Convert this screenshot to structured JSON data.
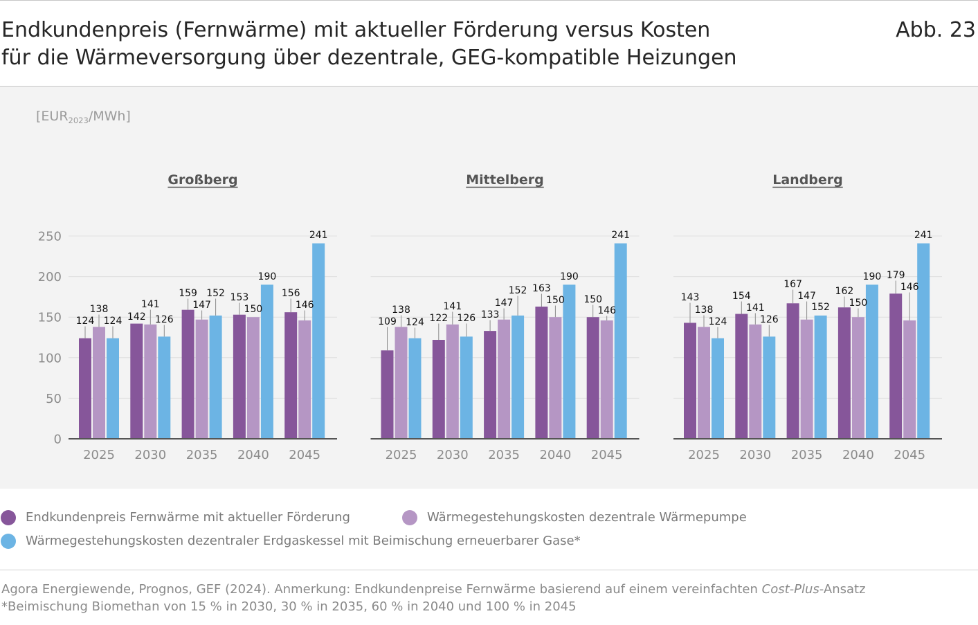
{
  "header": {
    "figure_number": "Abb. 23"
  },
  "chart_data": {
    "type": "bar",
    "title": [
      "Endkundenpreis (Fernwärme) mit aktueller Förderung versus Kosten",
      "für die Wärmeversorgung über dezentrale, GEG-kompatible Heizungen"
    ],
    "ylabel": {
      "prefix": "[EUR",
      "sub": "2023",
      "suffix": "/MWh]"
    },
    "ylim": [
      0,
      250
    ],
    "yticks": [
      0,
      50,
      100,
      150,
      200,
      250
    ],
    "grid": true,
    "categories": [
      "2025",
      "2030",
      "2035",
      "2040",
      "2045"
    ],
    "series": [
      {
        "name": "Endkundenpreis Fernwärme mit aktueller Förderung",
        "color": "#86569a"
      },
      {
        "name": "Wärmegestehungskosten dezentrale Wärmepumpe",
        "color": "#b596c4"
      },
      {
        "name": "Wärmegestehungskosten dezentraler Erdgaskessel mit Beimischung erneuerbarer Gase*",
        "color": "#6cb4e4"
      }
    ],
    "panels": [
      {
        "name": "Großberg",
        "values": [
          [
            124,
            142,
            159,
            153,
            156
          ],
          [
            138,
            141,
            147,
            150,
            146
          ],
          [
            124,
            126,
            152,
            190,
            241
          ]
        ]
      },
      {
        "name": "Mittelberg",
        "values": [
          [
            109,
            122,
            133,
            163,
            150
          ],
          [
            138,
            141,
            147,
            150,
            146
          ],
          [
            124,
            126,
            152,
            190,
            241
          ]
        ]
      },
      {
        "name": "Landberg",
        "values": [
          [
            143,
            154,
            167,
            162,
            179
          ],
          [
            138,
            141,
            147,
            150,
            146
          ],
          [
            124,
            126,
            152,
            190,
            241
          ]
        ]
      }
    ]
  },
  "footer": {
    "source_prefix": "Agora Energiewende, Prognos, GEF (2024). Anmerkung: Endkundenpreise Fernwärme basierend auf einem vereinfachten ",
    "source_italic": "Cost-Plus",
    "source_suffix": "-Ansatz",
    "footnote": "*Beimischung Biomethan von 15 % in 2030, 30 % in 2035, 60 % in 2040 und 100 % in 2045"
  }
}
